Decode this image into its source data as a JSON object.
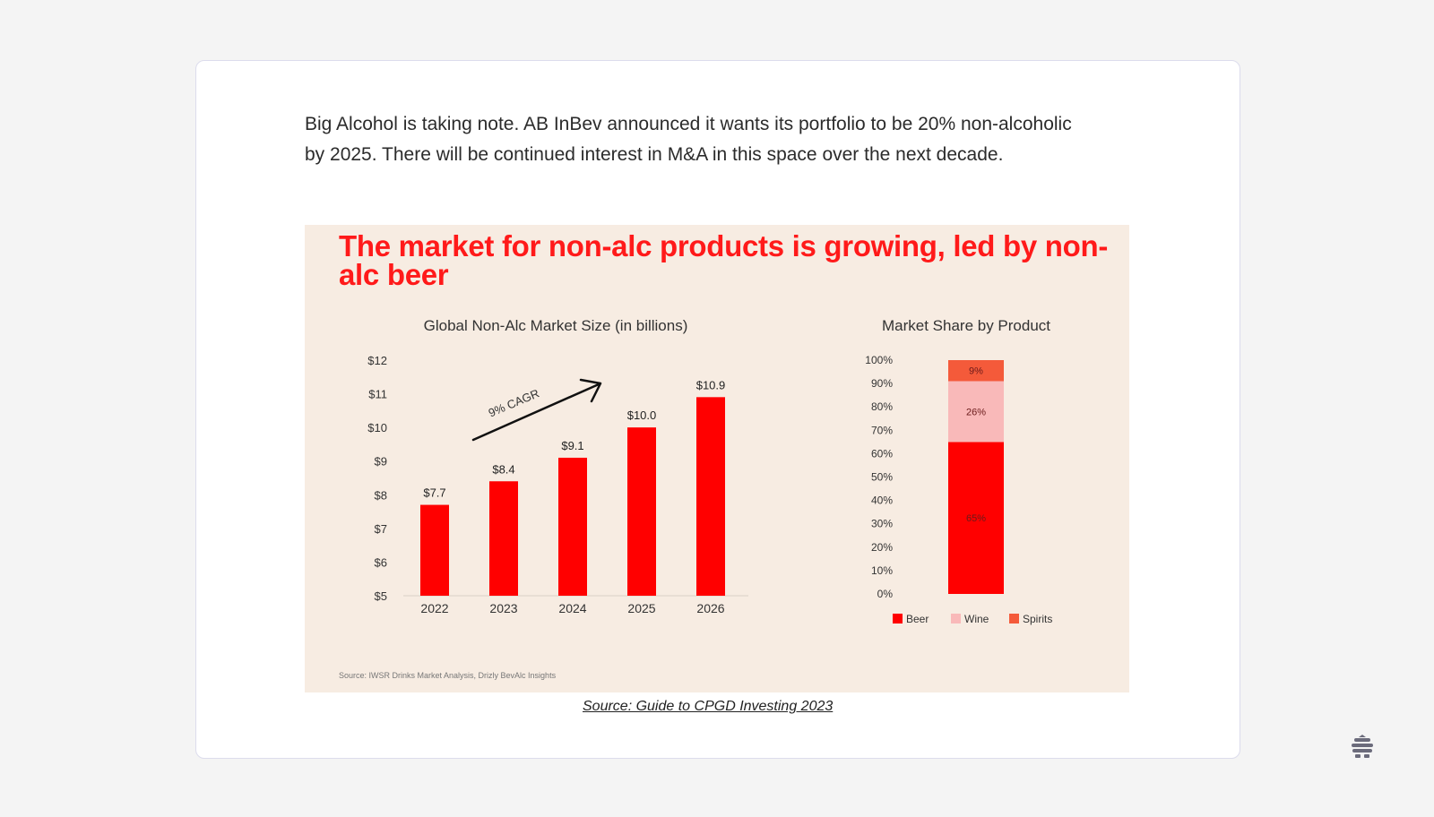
{
  "article": {
    "paragraph": "Big Alcohol is taking note. AB InBev announced it wants its portfolio to be 20% non-alcoholic by 2025. There will be continued interest in M&A in this space over the next decade.",
    "caption": "Source: Guide to CPGD Investing 2023"
  },
  "figure": {
    "title": "The market for non-alc products is growing, led by non-alc beer",
    "source": "Source:  IWSR Drinks Market Analysis, Drizly BevAlc Insights"
  },
  "brand": {
    "icon": "beehive-icon",
    "color": "#6b6b7b"
  },
  "colors": {
    "bar": "#ff0000",
    "beer": "#ff0000",
    "wine": "#f9b9b9",
    "spirits": "#f45a3a",
    "title": "#ff1a1a",
    "background": "#f7ece2"
  },
  "chart_data": [
    {
      "type": "bar",
      "title": "Global Non-Alc Market Size (in billions)",
      "categories": [
        "2022",
        "2023",
        "2024",
        "2025",
        "2026"
      ],
      "values": [
        7.7,
        8.4,
        9.1,
        10.0,
        10.9
      ],
      "data_labels": [
        "$7.7",
        "$8.4",
        "$9.1",
        "$10.0",
        "$10.9"
      ],
      "yticks": [
        "$5",
        "$6",
        "$7",
        "$8",
        "$9",
        "$10",
        "$11",
        "$12"
      ],
      "ylim": [
        5,
        12
      ],
      "annotation": "9% CAGR",
      "grid": false
    },
    {
      "type": "bar",
      "stacked": true,
      "title": "Market Share by Product",
      "categories": [
        ""
      ],
      "series": [
        {
          "name": "Beer",
          "values": [
            65
          ],
          "label": "65%"
        },
        {
          "name": "Wine",
          "values": [
            26
          ],
          "label": "26%"
        },
        {
          "name": "Spirits",
          "values": [
            9
          ],
          "label": "9%"
        }
      ],
      "yticks": [
        "0%",
        "10%",
        "20%",
        "30%",
        "40%",
        "50%",
        "60%",
        "70%",
        "80%",
        "90%",
        "100%"
      ],
      "ylim": [
        0,
        100
      ],
      "legend": "bottom"
    }
  ]
}
